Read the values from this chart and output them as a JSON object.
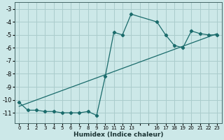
{
  "xlabel": "Humidex (Indice chaleur)",
  "bg_color": "#cce8e8",
  "grid_color": "#aacccc",
  "line_color": "#1a6b6b",
  "x_data": [
    0,
    1,
    2,
    3,
    4,
    5,
    6,
    7,
    8,
    9,
    10,
    11,
    12,
    13,
    16,
    17,
    18,
    19,
    20,
    21,
    22,
    23
  ],
  "y_data": [
    -10.2,
    -10.8,
    -10.8,
    -10.9,
    -10.9,
    -11.0,
    -11.0,
    -11.0,
    -10.9,
    -11.2,
    -8.2,
    -4.8,
    -5.0,
    -3.4,
    -4.0,
    -5.0,
    -5.8,
    -6.0,
    -4.7,
    -4.9,
    -5.0,
    -5.0
  ],
  "trend_x": [
    0,
    23
  ],
  "trend_y": [
    -10.5,
    -4.9
  ],
  "all_xticks": [
    0,
    1,
    2,
    3,
    4,
    5,
    6,
    7,
    8,
    9,
    10,
    11,
    12,
    13,
    14,
    15,
    16,
    17,
    18,
    19,
    20,
    21,
    22,
    23
  ],
  "labeled_xticks": [
    0,
    1,
    2,
    3,
    4,
    5,
    6,
    7,
    8,
    9,
    10,
    11,
    12,
    13,
    16,
    17,
    18,
    19,
    20,
    21,
    22,
    23
  ],
  "ylim": [
    -11.8,
    -2.5
  ],
  "xlim": [
    -0.5,
    23.5
  ],
  "yticks": [
    -11,
    -10,
    -9,
    -8,
    -7,
    -6,
    -5,
    -4,
    -3
  ]
}
